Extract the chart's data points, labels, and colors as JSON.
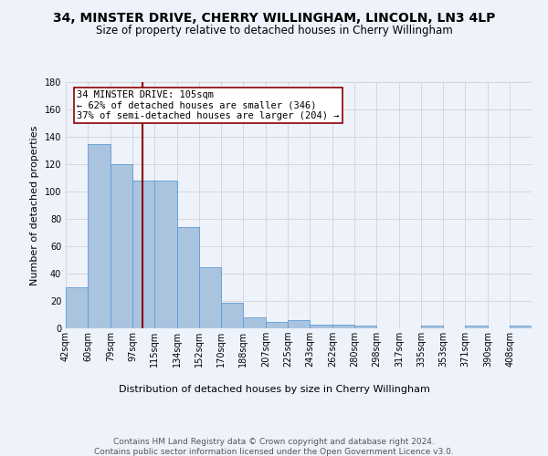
{
  "title1": "34, MINSTER DRIVE, CHERRY WILLINGHAM, LINCOLN, LN3 4LP",
  "title2": "Size of property relative to detached houses in Cherry Willingham",
  "xlabel": "Distribution of detached houses by size in Cherry Willingham",
  "ylabel": "Number of detached properties",
  "footer1": "Contains HM Land Registry data © Crown copyright and database right 2024.",
  "footer2": "Contains public sector information licensed under the Open Government Licence v3.0.",
  "annotation_line1": "34 MINSTER DRIVE: 105sqm",
  "annotation_line2": "← 62% of detached houses are smaller (346)",
  "annotation_line3": "37% of semi-detached houses are larger (204) →",
  "bar_color": "#aac4e0",
  "bar_edge_color": "#5b9bd5",
  "vline_color": "#8b0000",
  "vline_x": 105,
  "background_color": "#eef2fb",
  "grid_color": "#cccccc",
  "categories": [
    "42sqm",
    "60sqm",
    "79sqm",
    "97sqm",
    "115sqm",
    "134sqm",
    "152sqm",
    "170sqm",
    "188sqm",
    "207sqm",
    "225sqm",
    "243sqm",
    "262sqm",
    "280sqm",
    "298sqm",
    "317sqm",
    "335sqm",
    "353sqm",
    "371sqm",
    "390sqm",
    "408sqm"
  ],
  "bin_edges": [
    42,
    60,
    79,
    97,
    115,
    134,
    152,
    170,
    188,
    207,
    225,
    243,
    262,
    280,
    298,
    317,
    335,
    353,
    371,
    390,
    408,
    426
  ],
  "values": [
    30,
    135,
    120,
    108,
    108,
    74,
    45,
    19,
    8,
    5,
    6,
    3,
    3,
    2,
    0,
    0,
    2,
    0,
    2,
    0,
    2
  ],
  "ylim": [
    0,
    180
  ],
  "yticks": [
    0,
    20,
    40,
    60,
    80,
    100,
    120,
    140,
    160,
    180
  ],
  "title1_fontsize": 10,
  "title2_fontsize": 8.5,
  "xlabel_fontsize": 8,
  "ylabel_fontsize": 8,
  "tick_fontsize": 7,
  "footer_fontsize": 6.5,
  "annotation_fontsize": 7.5
}
